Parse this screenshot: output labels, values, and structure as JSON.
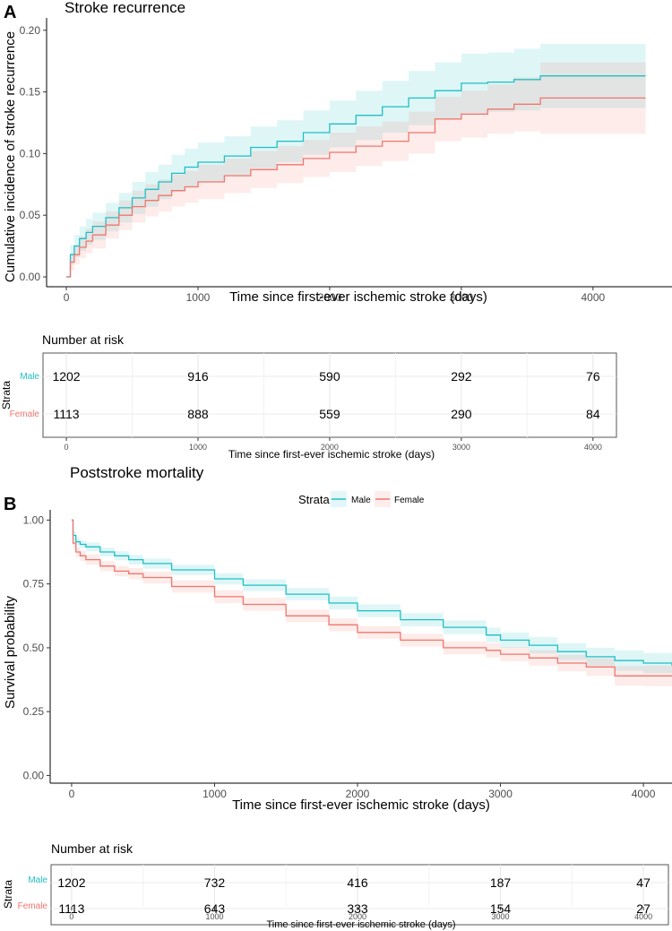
{
  "figure_a": {
    "panel_label": "A",
    "title": "Stroke recurrence",
    "ylabel": "Cumulative incidence of stroke recurrence",
    "xlabel": "Time since first-ever ischemic stroke (days)",
    "x_ticks": [
      "0",
      "1000",
      "2000",
      "3000",
      "4000"
    ],
    "y_ticks": [
      "0.00",
      "0.05",
      "0.10",
      "0.15",
      "0.20"
    ],
    "risk_table": {
      "title": "Number at risk",
      "strata_label": "Strata",
      "male_label": "Male",
      "female_label": "Female",
      "male": [
        "1202",
        "916",
        "590",
        "292",
        "76"
      ],
      "female": [
        "1113",
        "888",
        "559",
        "290",
        "84"
      ],
      "x_ticks": [
        "0",
        "1000",
        "2000",
        "3000",
        "4000"
      ],
      "xlabel": "Time since first-ever ischemic stroke (days)"
    }
  },
  "figure_b": {
    "panel_label": "B",
    "title": "Poststroke mortality",
    "legend_title": "Strata",
    "legend_male": "Male",
    "legend_female": "Female",
    "ylabel": "Survival probability",
    "xlabel": "Time since first-ever ischemic stroke (days)",
    "x_ticks": [
      "0",
      "1000",
      "2000",
      "3000",
      "4000"
    ],
    "y_ticks": [
      "0.00",
      "0.25",
      "0.50",
      "0.75",
      "1.00"
    ],
    "risk_table": {
      "title": "Number at risk",
      "strata_label": "Strata",
      "male_label": "Male",
      "female_label": "Female",
      "male": [
        "1202",
        "732",
        "416",
        "187",
        "47"
      ],
      "female": [
        "1113",
        "643",
        "333",
        "154",
        "27"
      ],
      "x_ticks": [
        "0",
        "1000",
        "2000",
        "3000",
        "4000"
      ],
      "xlabel": "Time since first-ever ischemic stroke (days)"
    }
  },
  "colors": {
    "male": "#1fbfc4",
    "female": "#f0766d"
  },
  "chart_data": [
    {
      "type": "line",
      "title": "Stroke recurrence",
      "xlabel": "Time since first-ever ischemic stroke (days)",
      "ylabel": "Cumulative incidence of stroke recurrence",
      "xlim": [
        -150,
        4600
      ],
      "ylim": [
        -0.008,
        0.21
      ],
      "series": [
        {
          "name": "Male",
          "x": [
            0,
            30,
            60,
            100,
            150,
            200,
            300,
            400,
            500,
            600,
            700,
            800,
            900,
            1000,
            1200,
            1400,
            1600,
            1800,
            2000,
            2200,
            2400,
            2600,
            2800,
            3000,
            3200,
            3400,
            3600,
            4000,
            4400
          ],
          "y": [
            0,
            0.018,
            0.025,
            0.031,
            0.036,
            0.041,
            0.048,
            0.056,
            0.064,
            0.071,
            0.077,
            0.084,
            0.089,
            0.093,
            0.098,
            0.105,
            0.11,
            0.117,
            0.124,
            0.131,
            0.138,
            0.145,
            0.151,
            0.157,
            0.158,
            0.16,
            0.163,
            0.163,
            0.163
          ],
          "lower": [
            0,
            0.01,
            0.016,
            0.021,
            0.026,
            0.03,
            0.037,
            0.044,
            0.051,
            0.057,
            0.063,
            0.069,
            0.073,
            0.077,
            0.082,
            0.088,
            0.093,
            0.099,
            0.105,
            0.111,
            0.117,
            0.123,
            0.128,
            0.133,
            0.134,
            0.135,
            0.137,
            0.137,
            0.137
          ],
          "upper": [
            0,
            0.026,
            0.034,
            0.041,
            0.047,
            0.052,
            0.06,
            0.068,
            0.077,
            0.085,
            0.091,
            0.099,
            0.104,
            0.109,
            0.114,
            0.122,
            0.127,
            0.135,
            0.143,
            0.151,
            0.159,
            0.167,
            0.174,
            0.181,
            0.182,
            0.185,
            0.189,
            0.189,
            0.189
          ]
        },
        {
          "name": "Female",
          "x": [
            0,
            30,
            60,
            100,
            150,
            200,
            300,
            400,
            500,
            600,
            700,
            800,
            900,
            1000,
            1200,
            1400,
            1600,
            1800,
            2000,
            2200,
            2400,
            2600,
            2800,
            3000,
            3200,
            3400,
            3600,
            4000,
            4400
          ],
          "y": [
            0,
            0.012,
            0.018,
            0.024,
            0.029,
            0.034,
            0.042,
            0.05,
            0.057,
            0.062,
            0.066,
            0.07,
            0.073,
            0.077,
            0.082,
            0.087,
            0.091,
            0.096,
            0.101,
            0.106,
            0.11,
            0.117,
            0.128,
            0.132,
            0.136,
            0.14,
            0.145,
            0.145,
            0.145
          ],
          "lower": [
            0,
            0.005,
            0.01,
            0.015,
            0.019,
            0.023,
            0.031,
            0.038,
            0.044,
            0.049,
            0.053,
            0.057,
            0.06,
            0.063,
            0.068,
            0.072,
            0.076,
            0.081,
            0.085,
            0.09,
            0.094,
            0.1,
            0.11,
            0.113,
            0.116,
            0.118,
            0.116,
            0.116,
            0.116
          ],
          "upper": [
            0,
            0.019,
            0.026,
            0.033,
            0.039,
            0.045,
            0.053,
            0.062,
            0.07,
            0.075,
            0.079,
            0.083,
            0.086,
            0.091,
            0.096,
            0.102,
            0.106,
            0.111,
            0.117,
            0.122,
            0.126,
            0.134,
            0.146,
            0.151,
            0.156,
            0.162,
            0.174,
            0.174,
            0.174
          ]
        }
      ],
      "risk_table": {
        "times": [
          0,
          1000,
          2000,
          3000,
          4000
        ],
        "male": [
          1202,
          916,
          590,
          292,
          76
        ],
        "female": [
          1113,
          888,
          559,
          290,
          84
        ]
      }
    },
    {
      "type": "line",
      "title": "Poststroke mortality",
      "xlabel": "Time since first-ever ischemic stroke (days)",
      "ylabel": "Survival probability",
      "xlim": [
        -150,
        4200
      ],
      "ylim": [
        -0.03,
        1.04
      ],
      "legend": "top",
      "series": [
        {
          "name": "Male",
          "x": [
            0,
            10,
            30,
            60,
            100,
            200,
            300,
            400,
            500,
            700,
            1000,
            1200,
            1500,
            1800,
            2000,
            2300,
            2600,
            2900,
            3000,
            3200,
            3400,
            3600,
            3800,
            4000,
            4200
          ],
          "y": [
            1.0,
            0.94,
            0.915,
            0.905,
            0.895,
            0.875,
            0.86,
            0.845,
            0.83,
            0.805,
            0.77,
            0.745,
            0.71,
            0.675,
            0.645,
            0.61,
            0.58,
            0.55,
            0.53,
            0.51,
            0.485,
            0.465,
            0.45,
            0.44,
            0.43
          ],
          "lower": [
            1.0,
            0.925,
            0.9,
            0.89,
            0.878,
            0.858,
            0.842,
            0.826,
            0.81,
            0.785,
            0.748,
            0.722,
            0.686,
            0.65,
            0.62,
            0.584,
            0.553,
            0.521,
            0.5,
            0.478,
            0.452,
            0.43,
            0.41,
            0.4,
            0.39
          ],
          "upper": [
            1.0,
            0.955,
            0.93,
            0.92,
            0.912,
            0.892,
            0.878,
            0.864,
            0.85,
            0.825,
            0.792,
            0.768,
            0.734,
            0.7,
            0.67,
            0.636,
            0.607,
            0.579,
            0.56,
            0.542,
            0.518,
            0.5,
            0.49,
            0.48,
            0.47
          ]
        },
        {
          "name": "Female",
          "x": [
            0,
            10,
            30,
            60,
            100,
            200,
            300,
            400,
            500,
            700,
            1000,
            1200,
            1500,
            1800,
            2000,
            2300,
            2600,
            2900,
            3000,
            3200,
            3400,
            3600,
            3800,
            4000,
            4200
          ],
          "y": [
            1.0,
            0.91,
            0.875,
            0.86,
            0.845,
            0.82,
            0.8,
            0.79,
            0.775,
            0.74,
            0.7,
            0.67,
            0.625,
            0.59,
            0.56,
            0.53,
            0.5,
            0.49,
            0.475,
            0.46,
            0.44,
            0.425,
            0.39,
            0.39,
            0.39
          ],
          "lower": [
            1.0,
            0.893,
            0.855,
            0.84,
            0.825,
            0.8,
            0.78,
            0.768,
            0.752,
            0.716,
            0.675,
            0.645,
            0.6,
            0.565,
            0.535,
            0.505,
            0.475,
            0.462,
            0.447,
            0.43,
            0.408,
            0.39,
            0.352,
            0.35,
            0.35
          ],
          "upper": [
            1.0,
            0.927,
            0.895,
            0.88,
            0.865,
            0.84,
            0.82,
            0.812,
            0.798,
            0.764,
            0.725,
            0.695,
            0.65,
            0.615,
            0.585,
            0.555,
            0.525,
            0.518,
            0.503,
            0.49,
            0.472,
            0.46,
            0.428,
            0.43,
            0.43
          ]
        }
      ],
      "risk_table": {
        "times": [
          0,
          1000,
          2000,
          3000,
          4000
        ],
        "male": [
          1202,
          732,
          416,
          187,
          47
        ],
        "female": [
          1113,
          643,
          333,
          154,
          27
        ]
      }
    }
  ]
}
